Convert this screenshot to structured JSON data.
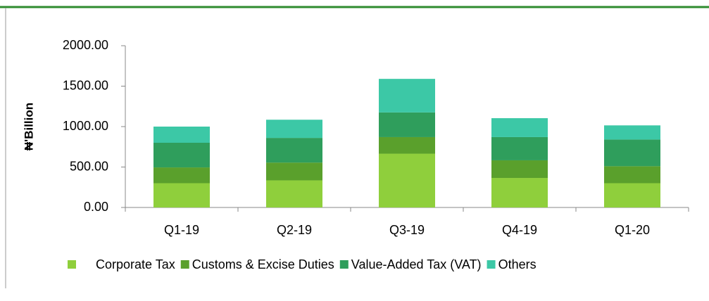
{
  "chart_data": {
    "type": "bar",
    "stacked": true,
    "y_label": "₦'Billion",
    "categories": [
      "Q1-19",
      "Q2-19",
      "Q3-19",
      "Q4-19",
      "Q1-20"
    ],
    "series": [
      {
        "name": "Corporate Tax",
        "color": "#8fcf3c",
        "values": [
          300,
          335,
          665,
          365,
          300
        ]
      },
      {
        "name": "Customs & Excise Duties",
        "color": "#5aa02c",
        "values": [
          195,
          220,
          205,
          218,
          210
        ]
      },
      {
        "name": "Value-Added Tax (VAT)",
        "color": "#2f9e5c",
        "values": [
          305,
          305,
          305,
          287,
          330
        ]
      },
      {
        "name": "Others",
        "color": "#3cc8a6",
        "values": [
          200,
          225,
          415,
          234,
          175
        ]
      }
    ],
    "ylim": [
      0,
      2000
    ],
    "yticks": [
      {
        "value": 0,
        "label": "0.00"
      },
      {
        "value": 500,
        "label": "500.00"
      },
      {
        "value": 1000,
        "label": "1000.00"
      },
      {
        "value": 1500,
        "label": "1500.00"
      },
      {
        "value": 2000,
        "label": "2000.00"
      }
    ]
  }
}
